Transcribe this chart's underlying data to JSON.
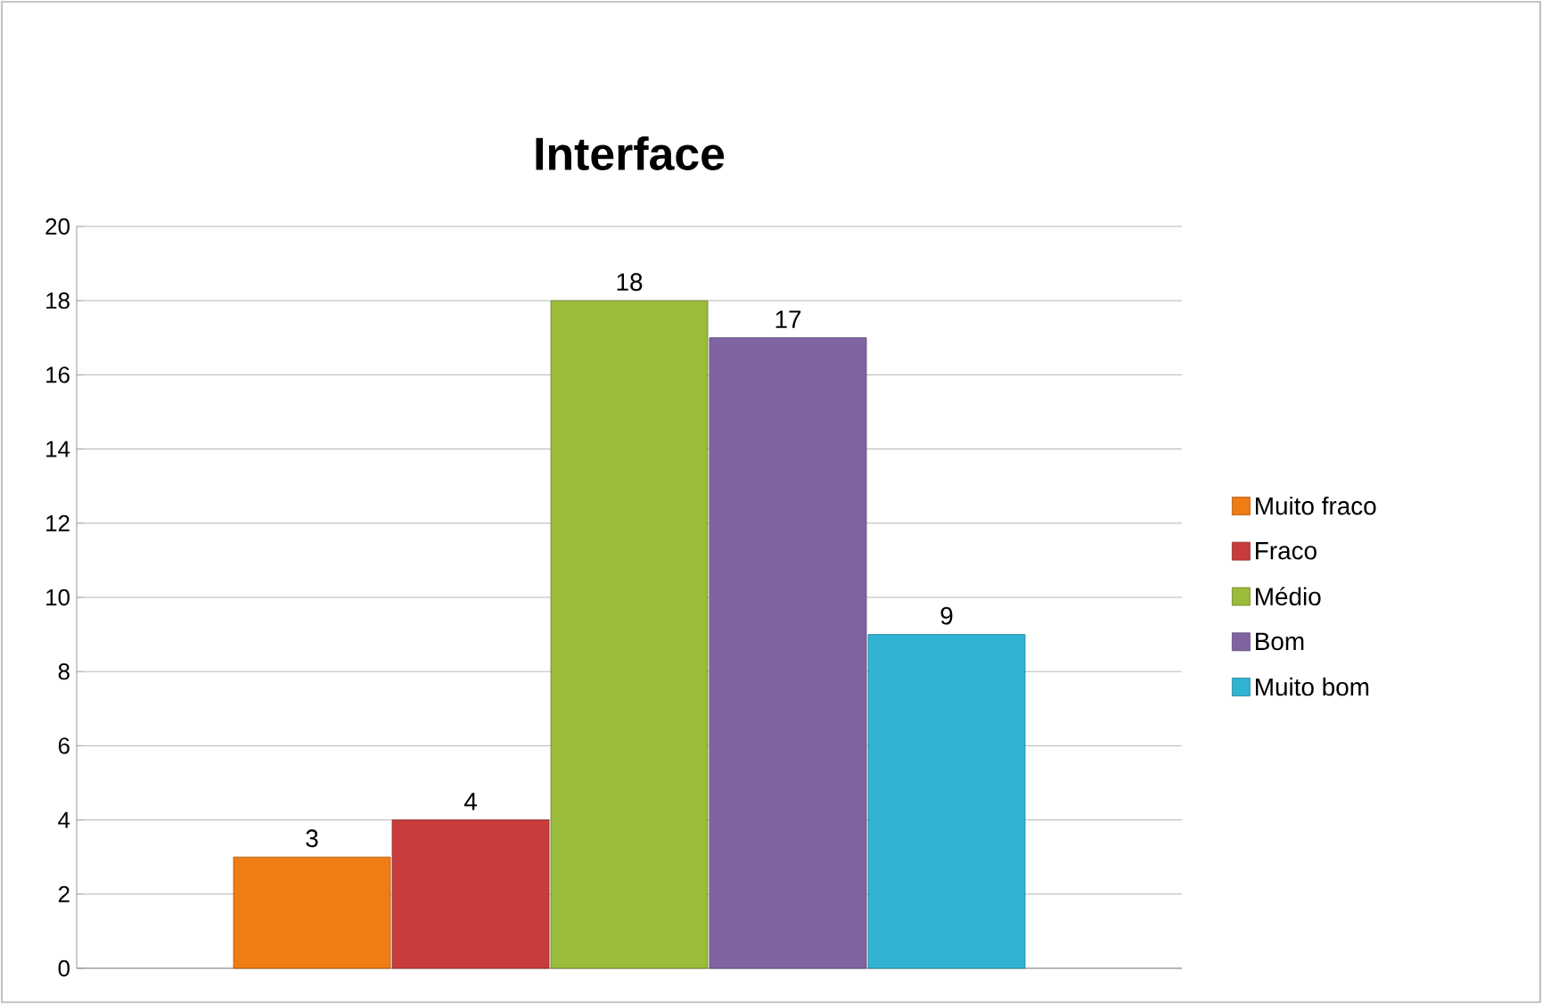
{
  "chart_data": {
    "type": "bar",
    "title": "Interface",
    "categories": [
      null
    ],
    "series": [
      {
        "name": "Muito fraco",
        "color": "#f07c14",
        "values": [
          3
        ]
      },
      {
        "name": "Fraco",
        "color": "#c83c3c",
        "values": [
          4
        ]
      },
      {
        "name": "Médio",
        "color": "#9bbb3a",
        "values": [
          18
        ]
      },
      {
        "name": "Bom",
        "color": "#8064a2",
        "values": [
          17
        ]
      },
      {
        "name": "Muito bom",
        "color": "#31b4d4",
        "values": [
          9
        ]
      }
    ],
    "ylim": [
      0,
      20
    ],
    "yticks": [
      0,
      2,
      4,
      6,
      8,
      10,
      12,
      14,
      16,
      18,
      20
    ],
    "grid": "y",
    "legend": "right",
    "data_labels": true
  }
}
